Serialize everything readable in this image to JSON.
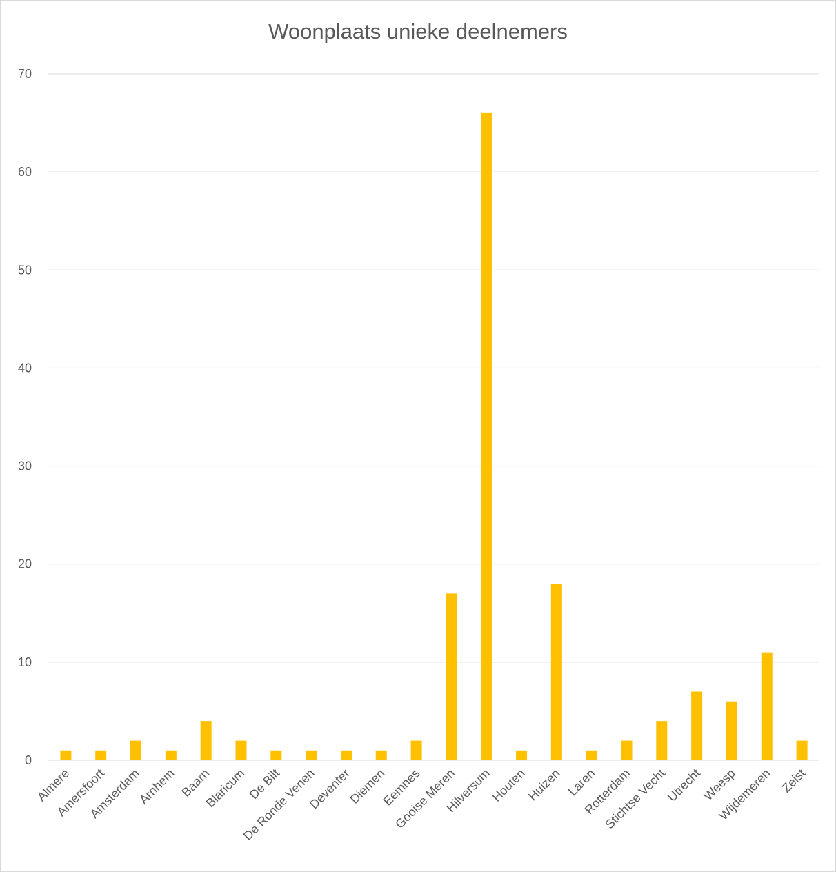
{
  "chart_data": {
    "type": "bar",
    "title": "Woonplaats unieke deelnemers",
    "xlabel": "",
    "ylabel": "",
    "categories": [
      "Almere",
      "Amersfoort",
      "Amsterdam",
      "Arnhem",
      "Baarn",
      "Blaricum",
      "De Bilt",
      "De Ronde Venen",
      "Deventer",
      "Diemen",
      "Eemnes",
      "Gooise Meren",
      "Hilversum",
      "Houten",
      "Huizen",
      "Laren",
      "Rotterdam",
      "Stichtse Vecht",
      "Utrecht",
      "Weesp",
      "Wijdemeren",
      "Zeist"
    ],
    "values": [
      1,
      1,
      2,
      1,
      4,
      2,
      1,
      1,
      1,
      1,
      2,
      17,
      66,
      1,
      18,
      1,
      2,
      4,
      7,
      6,
      11,
      2
    ],
    "ylim": [
      0,
      70
    ],
    "yticks": [
      0,
      10,
      20,
      30,
      40,
      50,
      60,
      70
    ],
    "grid": true,
    "legend": "none",
    "bar_color": "#FFC000",
    "grid_color": "#D9D9D9",
    "text_color": "#595959"
  }
}
